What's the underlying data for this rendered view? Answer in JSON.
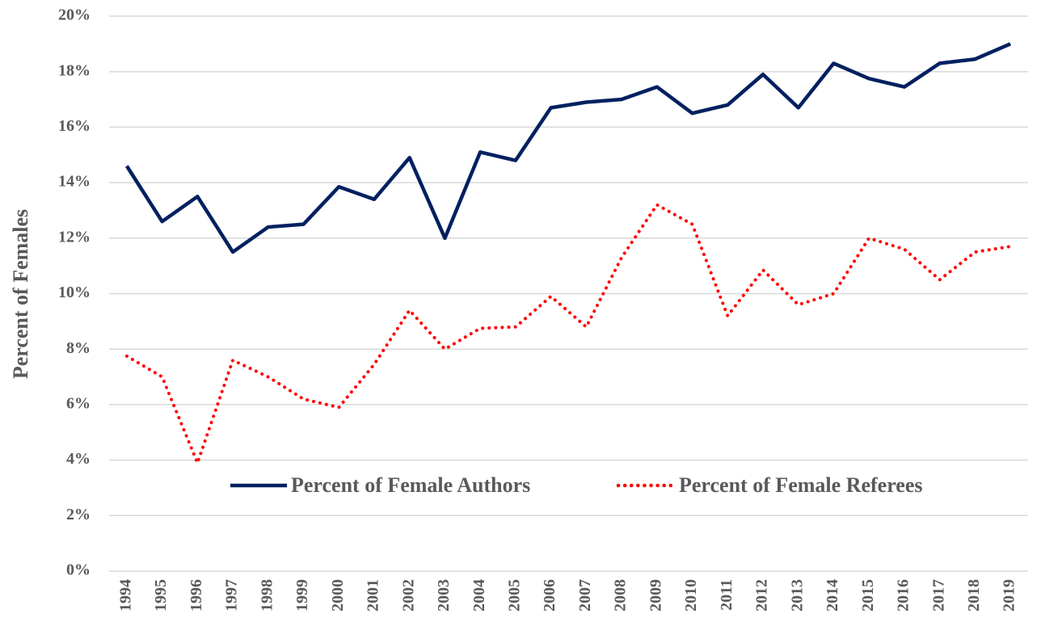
{
  "chart_data": {
    "type": "line",
    "y_label": "Percent of Females",
    "categories": [
      "1994",
      "1995",
      "1996",
      "1997",
      "1998",
      "1999",
      "2000",
      "2001",
      "2002",
      "2003",
      "2004",
      "2005",
      "2006",
      "2007",
      "2008",
      "2009",
      "2010",
      "2011",
      "2012",
      "2013",
      "2014",
      "2015",
      "2016",
      "2017",
      "2018",
      "2019"
    ],
    "series": [
      {
        "name": "Percent of Female Authors",
        "color": "#002060",
        "style": "solid",
        "values": [
          14.6,
          12.6,
          13.5,
          11.5,
          12.4,
          12.5,
          13.85,
          13.4,
          14.9,
          12.0,
          15.1,
          14.8,
          16.7,
          16.9,
          17.0,
          17.45,
          16.5,
          16.8,
          17.9,
          16.7,
          18.3,
          17.75,
          17.45,
          18.3,
          18.45,
          19.0
        ]
      },
      {
        "name": "Percent of Female Referees",
        "color": "#ff0000",
        "style": "dotted",
        "values": [
          7.75,
          7.0,
          3.9,
          7.6,
          7.0,
          6.2,
          5.9,
          7.45,
          9.4,
          8.0,
          8.75,
          8.8,
          9.9,
          8.8,
          11.3,
          13.2,
          12.5,
          9.2,
          10.85,
          9.6,
          10.0,
          12.0,
          11.6,
          10.5,
          11.5,
          11.7
        ]
      }
    ],
    "ylim": [
      0,
      20
    ],
    "yticks": [
      {
        "value": 0,
        "label": "0%"
      },
      {
        "value": 2,
        "label": "2%"
      },
      {
        "value": 4,
        "label": "4%"
      },
      {
        "value": 6,
        "label": "6%"
      },
      {
        "value": 8,
        "label": "8%"
      },
      {
        "value": 10,
        "label": "10%"
      },
      {
        "value": 12,
        "label": "12%"
      },
      {
        "value": 14,
        "label": "14%"
      },
      {
        "value": 16,
        "label": "16%"
      },
      {
        "value": 18,
        "label": "18%"
      },
      {
        "value": 20,
        "label": "20%"
      }
    ],
    "grid": true
  }
}
